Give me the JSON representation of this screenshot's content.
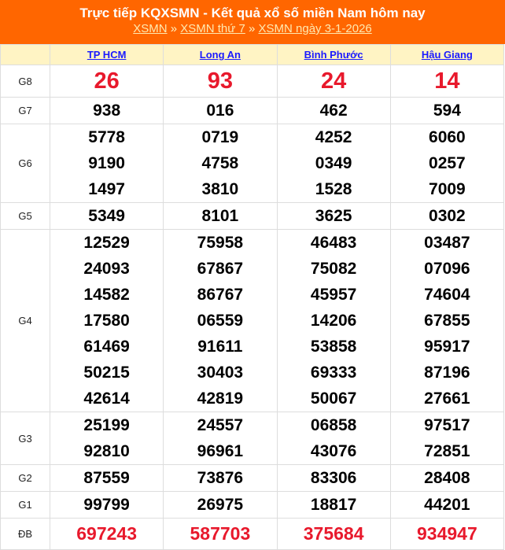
{
  "header": {
    "title": "Trực tiếp KQXSMN - Kết quả xổ số miền Nam hôm nay",
    "breadcrumb": [
      "XSMN",
      "XSMN thứ 7",
      "XSMN ngày 3-1-2026"
    ],
    "separator": "»"
  },
  "provinces": [
    "TP HCM",
    "Long An",
    "Bình Phước",
    "Hậu Giang"
  ],
  "prizes": [
    {
      "label": "G8",
      "cls": "g8",
      "values": [
        [
          "26"
        ],
        [
          "93"
        ],
        [
          "24"
        ],
        [
          "14"
        ]
      ]
    },
    {
      "label": "G7",
      "values": [
        [
          "938"
        ],
        [
          "016"
        ],
        [
          "462"
        ],
        [
          "594"
        ]
      ]
    },
    {
      "label": "G6",
      "values": [
        [
          "5778",
          "9190",
          "1497"
        ],
        [
          "0719",
          "4758",
          "3810"
        ],
        [
          "4252",
          "0349",
          "1528"
        ],
        [
          "6060",
          "0257",
          "7009"
        ]
      ]
    },
    {
      "label": "G5",
      "values": [
        [
          "5349"
        ],
        [
          "8101"
        ],
        [
          "3625"
        ],
        [
          "0302"
        ]
      ]
    },
    {
      "label": "G4",
      "values": [
        [
          "12529",
          "24093",
          "14582",
          "17580",
          "61469",
          "50215",
          "42614"
        ],
        [
          "75958",
          "67867",
          "86767",
          "06559",
          "91611",
          "30403",
          "42819"
        ],
        [
          "46483",
          "75082",
          "45957",
          "14206",
          "53858",
          "69333",
          "50067"
        ],
        [
          "03487",
          "07096",
          "74604",
          "67855",
          "95917",
          "87196",
          "27661"
        ]
      ]
    },
    {
      "label": "G3",
      "values": [
        [
          "25199",
          "92810"
        ],
        [
          "24557",
          "96961"
        ],
        [
          "06858",
          "43076"
        ],
        [
          "97517",
          "72851"
        ]
      ]
    },
    {
      "label": "G2",
      "values": [
        [
          "87559"
        ],
        [
          "73876"
        ],
        [
          "83306"
        ],
        [
          "28408"
        ]
      ]
    },
    {
      "label": "G1",
      "values": [
        [
          "99799"
        ],
        [
          "26975"
        ],
        [
          "18817"
        ],
        [
          "44201"
        ]
      ]
    },
    {
      "label": "ĐB",
      "cls": "db",
      "values": [
        [
          "697243"
        ],
        [
          "587703"
        ],
        [
          "375684"
        ],
        [
          "934947"
        ]
      ]
    }
  ],
  "colors": {
    "header_bg": "#ff6600",
    "highlight": "#e8192c",
    "link": "#1a1aff"
  }
}
